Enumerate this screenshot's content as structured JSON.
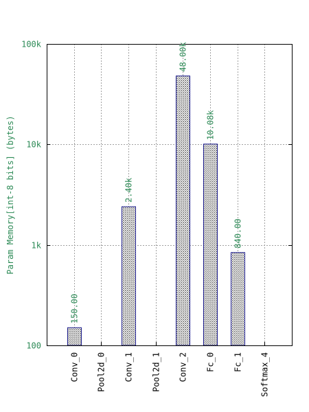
{
  "chart_data": {
    "type": "bar",
    "categories": [
      "Conv_0",
      "Pool2d_0",
      "Conv_1",
      "Pool2d_1",
      "Conv_2",
      "Fc_0",
      "Fc_1",
      "Softmax_4"
    ],
    "values": [
      150,
      null,
      2400,
      null,
      48000,
      10080,
      840,
      null
    ],
    "value_labels": [
      "150.00",
      "",
      "2.40k",
      "",
      "48.00k",
      "10.08k",
      "840.00",
      ""
    ],
    "ylabel": "Param Memory[int-8 bits] (bytes)",
    "yscale": "log",
    "ylim": [
      100,
      100000
    ],
    "yticks": [
      100,
      1000,
      10000,
      100000
    ],
    "ytick_labels": [
      "100",
      "1k",
      "10k",
      "100k"
    ],
    "grid": true,
    "colors": {
      "bar_edge": "#1a1a8c",
      "bar_fill": "#b0b0b0",
      "text": "#2e8b57"
    }
  }
}
